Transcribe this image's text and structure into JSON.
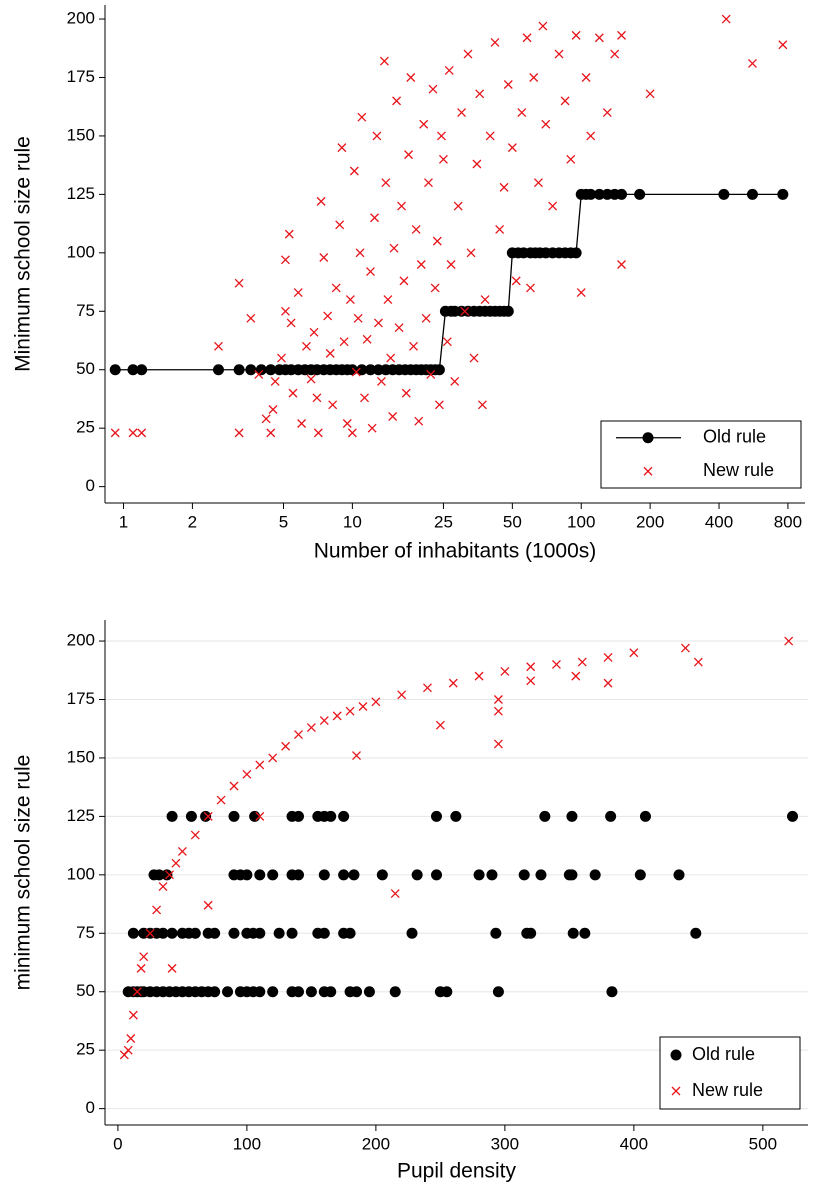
{
  "chart_data": [
    {
      "type": "scatter",
      "xscale": "log",
      "grid": false,
      "legend_position": "bottom-right",
      "xlabel": "Number of inhabitants (1000s)",
      "ylabel": "Minimum school size rule",
      "xlim": [
        0.83,
        950
      ],
      "xticks": [
        1,
        2,
        5,
        10,
        25,
        50,
        100,
        200,
        400,
        800
      ],
      "ylim": [
        -7,
        206
      ],
      "yticks": [
        0,
        25,
        50,
        75,
        100,
        125,
        150,
        175,
        200
      ],
      "series": [
        {
          "name": "Old rule",
          "color": "#000000",
          "marker": "circle",
          "connect": true,
          "x": [
            0.92,
            1.1,
            1.2,
            2.6,
            3.2,
            3.6,
            4.0,
            4.4,
            4.8,
            5.1,
            5.4,
            5.8,
            6.2,
            6.6,
            7.0,
            7.5,
            8,
            8.5,
            9,
            9.5,
            10,
            11,
            12,
            13,
            14,
            15,
            16,
            17,
            18,
            19,
            20,
            21,
            22,
            23,
            24,
            25.5,
            27,
            28,
            30,
            32,
            34,
            36,
            38,
            40,
            42,
            44,
            46,
            48,
            50,
            53,
            56,
            60,
            63,
            66,
            70,
            75,
            80,
            85,
            90,
            95,
            100,
            105,
            110,
            120,
            130,
            140,
            150,
            180,
            420,
            560,
            760
          ],
          "values": [
            50,
            50,
            50,
            50,
            50,
            50,
            50,
            50,
            50,
            50,
            50,
            50,
            50,
            50,
            50,
            50,
            50,
            50,
            50,
            50,
            50,
            50,
            50,
            50,
            50,
            50,
            50,
            50,
            50,
            50,
            50,
            50,
            50,
            50,
            50,
            75,
            75,
            75,
            75,
            75,
            75,
            75,
            75,
            75,
            75,
            75,
            75,
            75,
            100,
            100,
            100,
            100,
            100,
            100,
            100,
            100,
            100,
            100,
            100,
            100,
            125,
            125,
            125,
            125,
            125,
            125,
            125,
            125,
            125,
            125,
            125
          ]
        },
        {
          "name": "New rule",
          "color": "#e8141a",
          "marker": "x",
          "connect": false,
          "x": [
            0.92,
            1.1,
            1.2,
            2.6,
            3.2,
            3.2,
            3.6,
            3.9,
            4.2,
            4.4,
            4.5,
            4.6,
            4.9,
            5.1,
            5.1,
            5.3,
            5.4,
            5.5,
            5.8,
            6,
            6.3,
            6.6,
            6.8,
            7,
            7.1,
            7.3,
            7.5,
            7.8,
            8,
            8.2,
            8.5,
            8.8,
            9,
            9.2,
            9.5,
            9.8,
            10,
            10.2,
            10.4,
            10.6,
            10.8,
            11,
            11.3,
            11.6,
            12,
            12.2,
            12.5,
            12.8,
            13,
            13.4,
            13.8,
            14,
            14.3,
            14.7,
            15,
            15.2,
            15.6,
            16,
            16.4,
            16.8,
            17.2,
            17.6,
            18,
            18.5,
            19,
            19.5,
            20,
            20.5,
            21,
            21.5,
            22,
            22.5,
            23,
            23.5,
            24,
            24.5,
            25,
            26,
            26.5,
            27,
            28,
            29,
            30,
            31,
            32,
            33,
            34,
            35,
            36,
            37,
            38,
            40,
            42,
            44,
            46,
            48,
            50,
            52,
            55,
            58,
            60,
            62,
            65,
            68,
            70,
            75,
            80,
            85,
            90,
            95,
            100,
            105,
            110,
            120,
            130,
            140,
            150,
            150,
            200,
            430,
            560,
            760
          ],
          "values": [
            23,
            23,
            23,
            60,
            23,
            87,
            72,
            48,
            29,
            23,
            33,
            45,
            55,
            75,
            97,
            108,
            70,
            40,
            83,
            27,
            60,
            46,
            66,
            38,
            23,
            122,
            98,
            73,
            57,
            35,
            85,
            112,
            145,
            62,
            27,
            80,
            23,
            135,
            49,
            72,
            100,
            158,
            38,
            63,
            92,
            25,
            115,
            150,
            70,
            45,
            182,
            130,
            80,
            55,
            30,
            102,
            165,
            68,
            120,
            88,
            40,
            142,
            175,
            60,
            110,
            28,
            95,
            155,
            72,
            130,
            48,
            170,
            85,
            105,
            35,
            150,
            140,
            62,
            178,
            95,
            45,
            120,
            160,
            75,
            185,
            100,
            55,
            138,
            168,
            35,
            80,
            150,
            190,
            110,
            128,
            172,
            145,
            88,
            160,
            192,
            85,
            175,
            130,
            197,
            155,
            120,
            185,
            165,
            140,
            193,
            83,
            175,
            150,
            192,
            160,
            185,
            95,
            193,
            168,
            200,
            181,
            189
          ]
        }
      ]
    },
    {
      "type": "scatter",
      "xscale": "linear",
      "grid": true,
      "legend_position": "bottom-right",
      "xlabel": "Pupil density",
      "ylabel": "minimum school size rule",
      "xlim": [
        -10,
        535
      ],
      "xticks": [
        0,
        100,
        200,
        300,
        400,
        500
      ],
      "ylim": [
        -7,
        209
      ],
      "yticks": [
        0,
        25,
        50,
        75,
        100,
        125,
        150,
        175,
        200
      ],
      "series": [
        {
          "name": "Old rule",
          "color": "#000000",
          "marker": "circle",
          "connect": false,
          "x": [
            8,
            12,
            15,
            18,
            20,
            25,
            30,
            35,
            40,
            45,
            50,
            55,
            60,
            65,
            70,
            75,
            85,
            95,
            100,
            105,
            110,
            120,
            135,
            140,
            150,
            160,
            165,
            180,
            185,
            195,
            215,
            250,
            255,
            295,
            383,
            12,
            20,
            25,
            30,
            35,
            42,
            50,
            55,
            60,
            70,
            75,
            90,
            100,
            105,
            110,
            125,
            135,
            155,
            160,
            175,
            180,
            228,
            293,
            317,
            320,
            353,
            362,
            448,
            28,
            32,
            38,
            90,
            95,
            100,
            110,
            120,
            135,
            140,
            160,
            175,
            183,
            205,
            232,
            247,
            280,
            290,
            315,
            328,
            350,
            352,
            370,
            405,
            435,
            42,
            57,
            68,
            90,
            106,
            135,
            140,
            155,
            160,
            165,
            175,
            247,
            262,
            331,
            352,
            382,
            409,
            523
          ],
          "values": [
            50,
            50,
            50,
            50,
            50,
            50,
            50,
            50,
            50,
            50,
            50,
            50,
            50,
            50,
            50,
            50,
            50,
            50,
            50,
            50,
            50,
            50,
            50,
            50,
            50,
            50,
            50,
            50,
            50,
            50,
            50,
            50,
            50,
            50,
            50,
            75,
            75,
            75,
            75,
            75,
            75,
            75,
            75,
            75,
            75,
            75,
            75,
            75,
            75,
            75,
            75,
            75,
            75,
            75,
            75,
            75,
            75,
            75,
            75,
            75,
            75,
            75,
            75,
            100,
            100,
            100,
            100,
            100,
            100,
            100,
            100,
            100,
            100,
            100,
            100,
            100,
            100,
            100,
            100,
            100,
            100,
            100,
            100,
            100,
            100,
            100,
            100,
            100,
            125,
            125,
            125,
            125,
            125,
            125,
            125,
            125,
            125,
            125,
            125,
            125,
            125,
            125,
            125,
            125,
            125,
            125
          ]
        },
        {
          "name": "New rule",
          "color": "#e8141a",
          "marker": "x",
          "connect": false,
          "x": [
            5,
            8,
            10,
            12,
            15,
            18,
            20,
            25,
            30,
            35,
            40,
            45,
            50,
            60,
            70,
            80,
            90,
            100,
            110,
            120,
            130,
            140,
            150,
            160,
            170,
            180,
            190,
            200,
            220,
            240,
            260,
            280,
            300,
            320,
            340,
            360,
            380,
            400,
            440,
            450,
            520,
            70,
            42,
            110,
            215,
            250,
            185,
            295,
            295,
            380,
            295,
            355,
            320
          ],
          "values": [
            23,
            25,
            30,
            40,
            50,
            60,
            65,
            75,
            85,
            95,
            100,
            105,
            110,
            117,
            125,
            132,
            138,
            143,
            147,
            150,
            155,
            160,
            163,
            166,
            168,
            170,
            172,
            174,
            177,
            180,
            182,
            185,
            187,
            189,
            190,
            191,
            193,
            195,
            197,
            191,
            200,
            87,
            60,
            125,
            92,
            164,
            151,
            156,
            175,
            182,
            170,
            185,
            183
          ]
        }
      ]
    }
  ]
}
